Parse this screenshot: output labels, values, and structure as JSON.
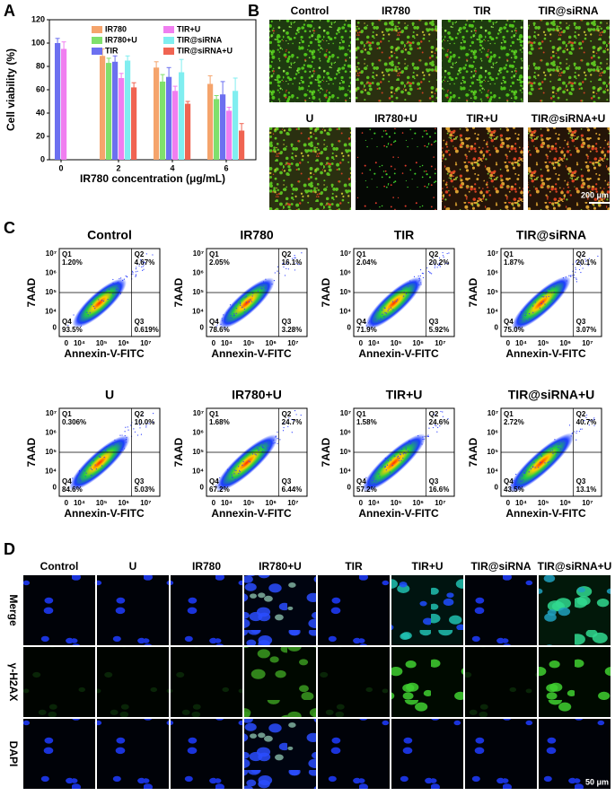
{
  "chart_data": {
    "type": "bar",
    "panel_label": "A",
    "ylabel": "Cell viability (%)",
    "xlabel": "IR780 concentration (μg/mL)",
    "categories": [
      "0",
      "2",
      "4",
      "6"
    ],
    "series": [
      {
        "name": "IR780",
        "color": "#f5a46c",
        "values": [
          null,
          89,
          79,
          65
        ],
        "errors": [
          null,
          6,
          5,
          7
        ]
      },
      {
        "name": "IR780+U",
        "color": "#7fe06c",
        "values": [
          null,
          83,
          67,
          52
        ],
        "errors": [
          null,
          4,
          6,
          3
        ]
      },
      {
        "name": "TIR",
        "color": "#6c70f0",
        "values": [
          100,
          84,
          71,
          56
        ],
        "errors": [
          4,
          5,
          8,
          11
        ]
      },
      {
        "name": "TIR+U",
        "color": "#f07ef0",
        "values": [
          95,
          70,
          59,
          42
        ],
        "errors": [
          6,
          4,
          4,
          3
        ]
      },
      {
        "name": "TIR@siRNA",
        "color": "#80eef0",
        "values": [
          null,
          85,
          75,
          59
        ],
        "errors": [
          null,
          4,
          11,
          11
        ]
      },
      {
        "name": "TIR@siRNA+U",
        "color": "#f06452",
        "values": [
          null,
          62,
          48,
          25
        ],
        "errors": [
          null,
          4,
          2,
          6
        ]
      }
    ],
    "ylim": [
      0,
      120
    ],
    "yticks": [
      0,
      20,
      40,
      60,
      80,
      100,
      120
    ]
  },
  "panel_b": {
    "label": "B",
    "groups": [
      "Control",
      "IR780",
      "TIR",
      "TIR@siRNA",
      "U",
      "IR780+U",
      "TIR+U",
      "TIR@siRNA+U"
    ],
    "scale_bar": "200 μm"
  },
  "panel_c": {
    "label": "C",
    "xlabel": "Annexin-V-FITC",
    "ylabel": "7AAD",
    "xticks": [
      "0",
      "10⁴",
      "10⁵",
      "10⁶",
      "10⁷"
    ],
    "yticks": [
      "0",
      "10⁴",
      "10⁵",
      "10⁶",
      "10⁷"
    ],
    "quadrants": [
      "Q1",
      "Q2",
      "Q3",
      "Q4"
    ],
    "plots": [
      {
        "title": "Control",
        "q1": "1.20%",
        "q2": "4.67%",
        "q3": "0.619%",
        "q4": "93.5%"
      },
      {
        "title": "IR780",
        "q1": "2.05%",
        "q2": "16.1%",
        "q3": "3.28%",
        "q4": "78.6%"
      },
      {
        "title": "TIR",
        "q1": "2.04%",
        "q2": "20.2%",
        "q3": "5.92%",
        "q4": "71.9%"
      },
      {
        "title": "TIR@siRNA",
        "q1": "1.87%",
        "q2": "20.1%",
        "q3": "3.07%",
        "q4": "75.0%"
      },
      {
        "title": "U",
        "q1": "0.306%",
        "q2": "10.0%",
        "q3": "5.03%",
        "q4": "84.6%"
      },
      {
        "title": "IR780+U",
        "q1": "1.68%",
        "q2": "24.7%",
        "q3": "6.44%",
        "q4": "67.2%"
      },
      {
        "title": "TIR+U",
        "q1": "1.58%",
        "q2": "24.6%",
        "q3": "16.6%",
        "q4": "57.2%"
      },
      {
        "title": "TIR@siRNA+U",
        "q1": "2.72%",
        "q2": "40.7%",
        "q3": "13.1%",
        "q4": "43.5%"
      }
    ]
  },
  "panel_d": {
    "label": "D",
    "columns": [
      "Control",
      "U",
      "IR780",
      "IR780+U",
      "TIR",
      "TIR+U",
      "TIR@siRNA",
      "TIR@siRNA+U"
    ],
    "rows": [
      "Merge",
      "γ-H2AX",
      "DAPI"
    ],
    "scale_bar": "50 μm"
  }
}
